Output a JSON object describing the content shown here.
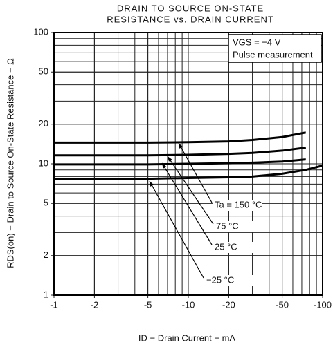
{
  "chart_data": {
    "type": "line",
    "title": [
      "DRAIN TO SOURCE ON-STATE",
      "RESISTANCE vs. DRAIN CURRENT"
    ],
    "x_label": "ID − Drain Current − mA",
    "y_label": "RDS(on) − Drain to Source On-State Resistance − Ω",
    "note": [
      "VGS = −4 V",
      "Pulse measurement"
    ],
    "xlim": [
      -1,
      -100
    ],
    "xticks": [
      -1,
      -2,
      -5,
      -10,
      -20,
      -50,
      -100
    ],
    "ylim": [
      1,
      100
    ],
    "yticks": [
      1,
      2,
      5,
      10,
      20,
      50,
      100
    ],
    "log_x": true,
    "log_y": true,
    "grid": true,
    "series": [
      {
        "name": "Ta = 150 °C",
        "color": "#000000",
        "x": [
          -1,
          -2,
          -5,
          -10,
          -20,
          -30,
          -50,
          -75
        ],
        "values": [
          14.5,
          14.5,
          14.5,
          14.6,
          14.8,
          15.2,
          16,
          17.3
        ]
      },
      {
        "name": "75 °C",
        "color": "#000000",
        "x": [
          -1,
          -2,
          -5,
          -10,
          -20,
          -30,
          -50,
          -75
        ],
        "values": [
          11.6,
          11.6,
          11.6,
          11.7,
          11.9,
          12.1,
          12.6,
          13.3
        ]
      },
      {
        "name": "25 °C",
        "color": "#000000",
        "x": [
          -1,
          -2,
          -5,
          -10,
          -20,
          -30,
          -50,
          -75
        ],
        "values": [
          9.9,
          9.9,
          9.9,
          10,
          10.1,
          10.2,
          10.4,
          10.8
        ]
      },
      {
        "name": "−25 °C",
        "color": "#000000",
        "x": [
          -1,
          -2,
          -5,
          -10,
          -20,
          -30,
          -50,
          -75,
          -100
        ],
        "values": [
          7.7,
          7.7,
          7.7,
          7.8,
          7.9,
          8.0,
          8.4,
          9.0,
          9.7
        ]
      }
    ]
  }
}
